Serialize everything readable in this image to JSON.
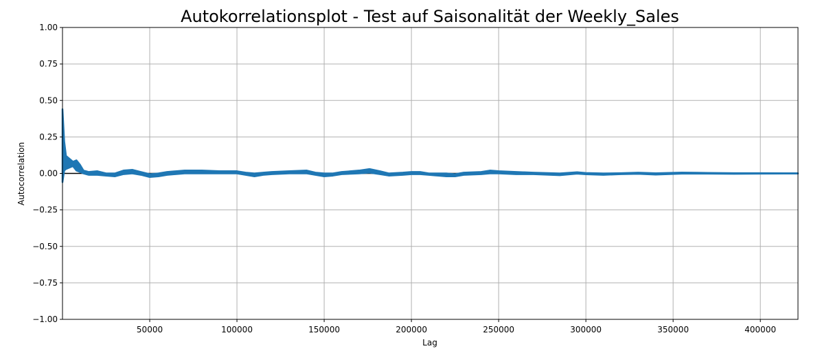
{
  "chart_data": {
    "type": "line",
    "title": "Autokorrelationsplot - Test auf Saisonalität der Weekly_Sales",
    "xlabel": "Lag",
    "ylabel": "Autocorrelation",
    "xlim": [
      1,
      421570
    ],
    "ylim": [
      -1.0,
      1.0
    ],
    "grid": true,
    "x_ticks": [
      50000,
      100000,
      150000,
      200000,
      250000,
      300000,
      350000,
      400000
    ],
    "x_tick_labels": [
      "50000",
      "100000",
      "150000",
      "200000",
      "250000",
      "300000",
      "350000",
      "400000"
    ],
    "y_ticks": [
      -1.0,
      -0.75,
      -0.5,
      -0.25,
      0.0,
      0.25,
      0.5,
      0.75,
      1.0
    ],
    "y_tick_labels": [
      "−1.00",
      "−0.75",
      "−0.50",
      "−0.25",
      "0.00",
      "0.25",
      "0.50",
      "0.75",
      "1.00"
    ],
    "series": [
      {
        "color": "#1f77b4",
        "envelope": [
          {
            "x": 1,
            "lo": -0.06,
            "hi": 0.44
          },
          {
            "x": 1000,
            "lo": 0.02,
            "hi": 0.22
          },
          {
            "x": 2000,
            "lo": 0.03,
            "hi": 0.12
          },
          {
            "x": 4000,
            "lo": 0.04,
            "hi": 0.1
          },
          {
            "x": 6000,
            "lo": 0.05,
            "hi": 0.08
          },
          {
            "x": 8000,
            "lo": 0.02,
            "hi": 0.09
          },
          {
            "x": 10000,
            "lo": 0.01,
            "hi": 0.06
          },
          {
            "x": 12000,
            "lo": 0.0,
            "hi": 0.02
          },
          {
            "x": 15000,
            "lo": -0.01,
            "hi": 0.01
          },
          {
            "x": 20000,
            "lo": -0.01,
            "hi": 0.015
          },
          {
            "x": 25000,
            "lo": -0.015,
            "hi": 0.0
          },
          {
            "x": 30000,
            "lo": -0.02,
            "hi": 0.0
          },
          {
            "x": 35000,
            "lo": -0.005,
            "hi": 0.02
          },
          {
            "x": 40000,
            "lo": 0.0,
            "hi": 0.025
          },
          {
            "x": 45000,
            "lo": -0.01,
            "hi": 0.01
          },
          {
            "x": 50000,
            "lo": -0.025,
            "hi": -0.005
          },
          {
            "x": 55000,
            "lo": -0.02,
            "hi": 0.0
          },
          {
            "x": 60000,
            "lo": -0.01,
            "hi": 0.01
          },
          {
            "x": 70000,
            "lo": 0.0,
            "hi": 0.02
          },
          {
            "x": 80000,
            "lo": 0.0,
            "hi": 0.02
          },
          {
            "x": 90000,
            "lo": 0.0,
            "hi": 0.015
          },
          {
            "x": 100000,
            "lo": 0.0,
            "hi": 0.015
          },
          {
            "x": 105000,
            "lo": -0.01,
            "hi": 0.005
          },
          {
            "x": 110000,
            "lo": -0.02,
            "hi": 0.0
          },
          {
            "x": 115000,
            "lo": -0.01,
            "hi": 0.005
          },
          {
            "x": 120000,
            "lo": -0.005,
            "hi": 0.01
          },
          {
            "x": 130000,
            "lo": 0.0,
            "hi": 0.015
          },
          {
            "x": 140000,
            "lo": 0.0,
            "hi": 0.02
          },
          {
            "x": 145000,
            "lo": -0.01,
            "hi": 0.005
          },
          {
            "x": 150000,
            "lo": -0.02,
            "hi": 0.0
          },
          {
            "x": 155000,
            "lo": -0.015,
            "hi": 0.0
          },
          {
            "x": 160000,
            "lo": -0.005,
            "hi": 0.01
          },
          {
            "x": 170000,
            "lo": 0.0,
            "hi": 0.02
          },
          {
            "x": 176000,
            "lo": 0.005,
            "hi": 0.03
          },
          {
            "x": 182000,
            "lo": -0.005,
            "hi": 0.015
          },
          {
            "x": 187000,
            "lo": -0.015,
            "hi": 0.0
          },
          {
            "x": 195000,
            "lo": -0.01,
            "hi": 0.005
          },
          {
            "x": 200000,
            "lo": -0.005,
            "hi": 0.01
          },
          {
            "x": 205000,
            "lo": -0.005,
            "hi": 0.01
          },
          {
            "x": 210000,
            "lo": -0.01,
            "hi": 0.0
          },
          {
            "x": 220000,
            "lo": -0.02,
            "hi": 0.0
          },
          {
            "x": 225000,
            "lo": -0.02,
            "hi": -0.005
          },
          {
            "x": 230000,
            "lo": -0.01,
            "hi": 0.005
          },
          {
            "x": 240000,
            "lo": -0.005,
            "hi": 0.01
          },
          {
            "x": 245000,
            "lo": 0.0,
            "hi": 0.02
          },
          {
            "x": 250000,
            "lo": 0.0,
            "hi": 0.015
          },
          {
            "x": 260000,
            "lo": -0.005,
            "hi": 0.01
          },
          {
            "x": 270000,
            "lo": -0.005,
            "hi": 0.005
          },
          {
            "x": 285000,
            "lo": -0.012,
            "hi": 0.0
          },
          {
            "x": 295000,
            "lo": -0.002,
            "hi": 0.008
          },
          {
            "x": 300000,
            "lo": -0.006,
            "hi": 0.003
          },
          {
            "x": 310000,
            "lo": -0.01,
            "hi": 0.0
          },
          {
            "x": 320000,
            "lo": -0.005,
            "hi": 0.002
          },
          {
            "x": 330000,
            "lo": -0.003,
            "hi": 0.005
          },
          {
            "x": 340000,
            "lo": -0.008,
            "hi": 0.001
          },
          {
            "x": 355000,
            "lo": -0.002,
            "hi": 0.006
          },
          {
            "x": 370000,
            "lo": -0.002,
            "hi": 0.004
          },
          {
            "x": 385000,
            "lo": -0.003,
            "hi": 0.002
          },
          {
            "x": 400000,
            "lo": -0.002,
            "hi": 0.002
          },
          {
            "x": 421570,
            "lo": -0.001,
            "hi": 0.001
          }
        ]
      }
    ],
    "reference_lines": [
      {
        "y": 0.0,
        "color": "#000000"
      }
    ]
  }
}
